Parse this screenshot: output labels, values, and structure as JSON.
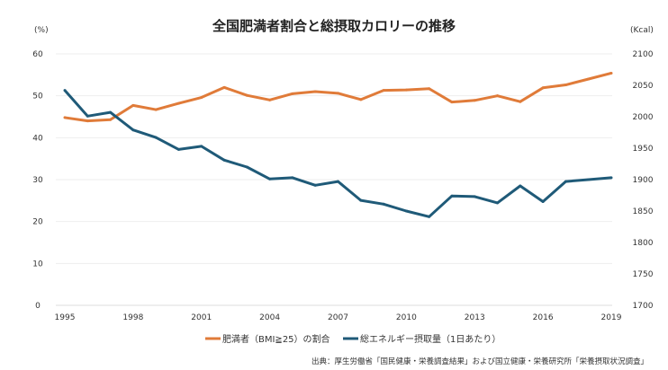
{
  "chart_data": {
    "type": "line",
    "title": "全国肥満者割合と総摂取カロリーの推移",
    "ylabel_left": "(%)",
    "ylabel_right": "(Kcal)",
    "x": [
      1995,
      1996,
      1997,
      1998,
      1999,
      2000,
      2001,
      2002,
      2003,
      2004,
      2005,
      2006,
      2007,
      2008,
      2009,
      2010,
      2011,
      2012,
      2013,
      2014,
      2015,
      2016,
      2017,
      2018,
      2019
    ],
    "x_ticks": [
      "1995",
      "1998",
      "2001",
      "2004",
      "2007",
      "2010",
      "2013",
      "2016",
      "2019"
    ],
    "ylim_left": [
      0,
      60
    ],
    "yticks_left": [
      "0",
      "10",
      "20",
      "30",
      "40",
      "50",
      "60"
    ],
    "ylim_right": [
      1700,
      2100
    ],
    "yticks_right": [
      "1700",
      "1750",
      "1800",
      "1850",
      "1900",
      "1950",
      "2000",
      "2050",
      "2100"
    ],
    "grid": true,
    "legend_position": "bottom",
    "series": [
      {
        "name": "肥満者（BMI≧25）の割合",
        "axis": "left",
        "color": "#e07b39",
        "values": [
          44.8,
          44.0,
          44.3,
          47.7,
          46.7,
          48.2,
          49.6,
          52.0,
          50.1,
          49.0,
          50.5,
          51.0,
          50.6,
          49.1,
          51.3,
          51.4,
          51.7,
          48.5,
          48.9,
          50.0,
          48.6,
          51.9,
          52.6,
          54.0,
          55.4
        ]
      },
      {
        "name": "総エネルギー摂取量（1日あたり）",
        "axis": "right",
        "color": "#1f5a78",
        "values": [
          2042,
          2001,
          2007,
          1979,
          1967,
          1948,
          1953,
          1931,
          1920,
          1901,
          1903,
          1891,
          1897,
          1867,
          1861,
          1850,
          1841,
          1874,
          1873,
          1863,
          1890,
          1865,
          1897,
          1900,
          1903
        ]
      }
    ],
    "source": "出典：厚生労働省「国民健康・栄養調査結果」および国立健康・栄養研究所「栄養摂取状況調査」"
  }
}
